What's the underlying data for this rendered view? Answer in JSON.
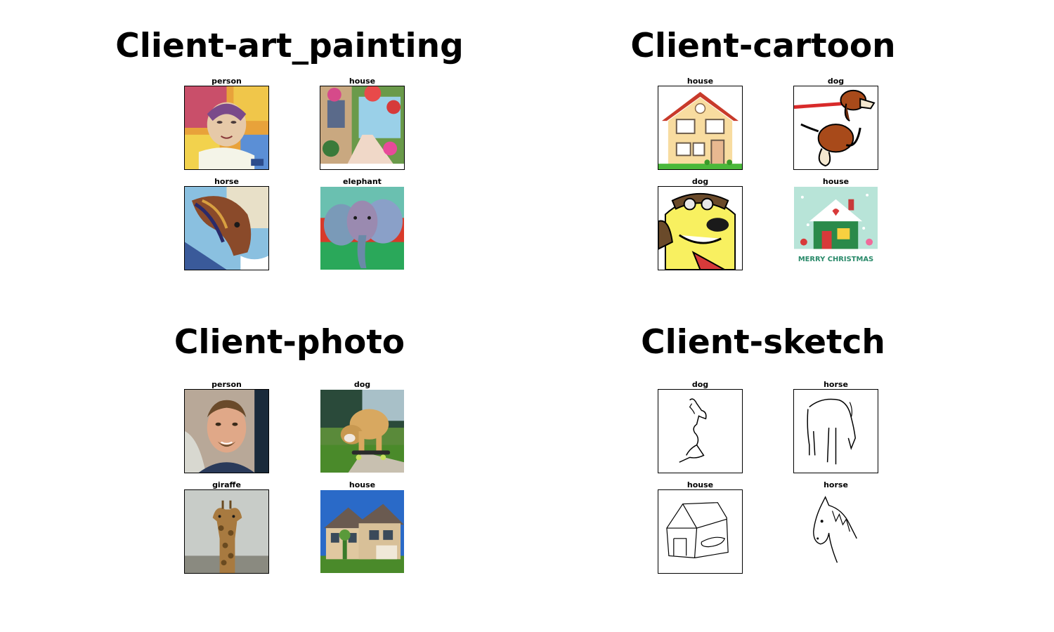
{
  "panels": [
    {
      "title": "Client-art_painting",
      "images": [
        {
          "label": "person",
          "icon": "painted-portrait-icon"
        },
        {
          "label": "house",
          "icon": "painted-garden-house-icon"
        },
        {
          "label": "horse",
          "icon": "painted-horse-icon"
        },
        {
          "label": "elephant",
          "icon": "painted-elephant-icon"
        }
      ]
    },
    {
      "title": "Client-cartoon",
      "images": [
        {
          "label": "house",
          "icon": "cartoon-house-icon"
        },
        {
          "label": "dog",
          "icon": "cartoon-beagle-icon"
        },
        {
          "label": "dog",
          "icon": "cartoon-pilot-dog-icon"
        },
        {
          "label": "house",
          "icon": "cartoon-christmas-house-icon",
          "caption": "MERRY CHRISTMAS"
        }
      ]
    },
    {
      "title": "Client-photo",
      "images": [
        {
          "label": "person",
          "icon": "photo-man-portrait-icon"
        },
        {
          "label": "dog",
          "icon": "photo-bulldog-skateboard-icon"
        },
        {
          "label": "giraffe",
          "icon": "photo-giraffe-icon"
        },
        {
          "label": "house",
          "icon": "photo-suburban-house-icon"
        }
      ]
    },
    {
      "title": "Client-sketch",
      "images": [
        {
          "label": "dog",
          "icon": "sketch-dog-icon"
        },
        {
          "label": "horse",
          "icon": "sketch-horse-icon"
        },
        {
          "label": "house",
          "icon": "sketch-house-icon"
        },
        {
          "label": "horse",
          "icon": "sketch-horse-head-icon"
        }
      ]
    }
  ]
}
